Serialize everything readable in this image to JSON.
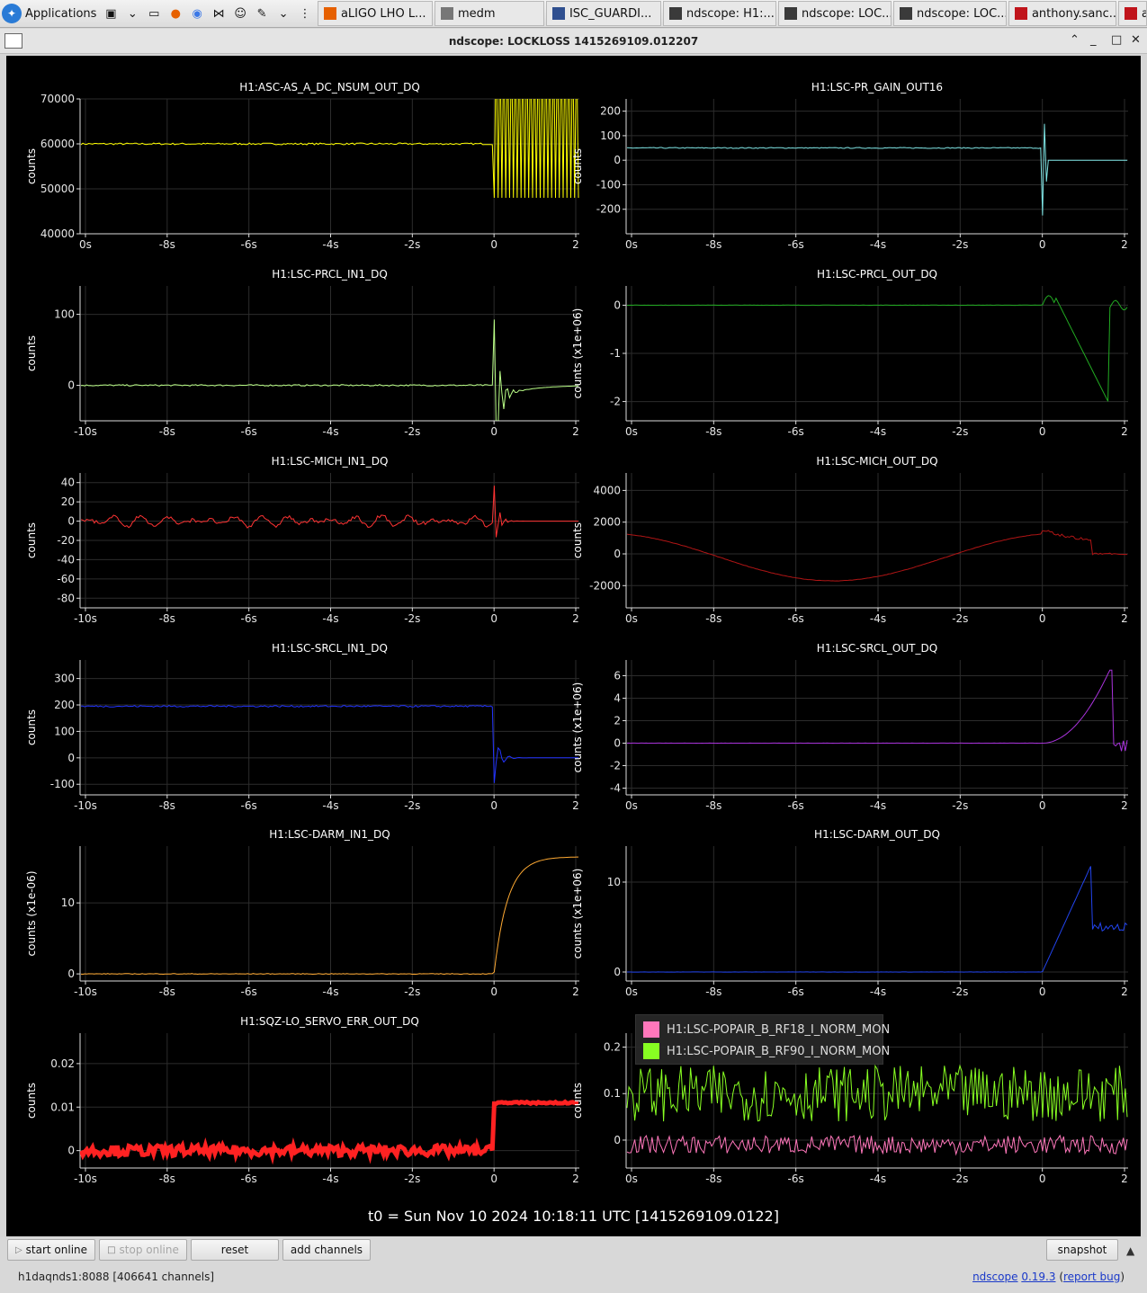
{
  "taskbar": {
    "applications_label": "Applications",
    "tasks": [
      {
        "label": "aLIGO LHO L...",
        "icon": "firefox-icon",
        "color": "#e66000"
      },
      {
        "label": "medm",
        "icon": "window-icon",
        "color": "#777777"
      },
      {
        "label": "ISC_GUARDI...",
        "icon": "monitor-icon",
        "color": "#2f4f8f"
      },
      {
        "label": "ndscope: H1:...",
        "icon": "ndscope-icon",
        "color": "#3a3a3a"
      },
      {
        "label": "ndscope: LOC...",
        "icon": "ndscope-icon",
        "color": "#3a3a3a"
      },
      {
        "label": "ndscope: LOC...",
        "icon": "ndscope-icon",
        "color": "#3a3a3a"
      },
      {
        "label": "anthony.sanc...",
        "icon": "terminal-red-icon",
        "color": "#c0141b"
      },
      {
        "label": "a",
        "icon": "terminal-red-icon",
        "color": "#c0141b"
      }
    ]
  },
  "window": {
    "title": "ndscope: LOCKLOSS 1415269109.012207"
  },
  "plots": {
    "t0_label": "t0 = Sun Nov 10 2024 10:18:11 UTC [1415269109.0122]",
    "legend": [
      {
        "name": "H1:LSC-POPAIR_B_RF18_I_NORM_MON",
        "color": "#ff77bb"
      },
      {
        "name": "H1:LSC-POPAIR_B_RF90_I_NORM_MON",
        "color": "#88ff22"
      }
    ]
  },
  "chart_data": [
    {
      "type": "line",
      "title": "H1:ASC-AS_A_DC_NSUM_OUT_DQ",
      "ylabel": "counts",
      "color": "#ffff00",
      "xticks": [
        "0s",
        "-8s",
        "-6s",
        "-4s",
        "-2s",
        "0",
        "2"
      ],
      "yticks": [
        {
          "v": 70000,
          "t": "70000"
        },
        {
          "v": 60000,
          "t": "60000"
        },
        {
          "v": 50000,
          "t": "50000"
        },
        {
          "v": 40000,
          "t": "40000"
        }
      ],
      "ylim": [
        40000,
        70000
      ],
      "pattern": "flat",
      "base": 60000,
      "noise": 200
    },
    {
      "type": "line",
      "title": "H1:LSC-PR_GAIN_OUT16",
      "ylabel": "counts",
      "color": "#7fe5e5",
      "xticks": [
        "0s",
        "-8s",
        "-6s",
        "-4s",
        "-2s",
        "0",
        "2"
      ],
      "yticks": [
        {
          "v": 200,
          "t": "200"
        },
        {
          "v": 100,
          "t": "100"
        },
        {
          "v": 0,
          "t": "0"
        },
        {
          "v": -100,
          "t": "-100"
        },
        {
          "v": -200,
          "t": "-200"
        }
      ],
      "ylim": [
        -300,
        250
      ],
      "pattern": "flat",
      "base": 50,
      "noise": 2
    },
    {
      "type": "line",
      "title": "H1:LSC-PRCL_IN1_DQ",
      "ylabel": "counts",
      "color": "#bbff88",
      "xticks": [
        "-10s",
        "-8s",
        "-6s",
        "-4s",
        "-2s",
        "0",
        "2"
      ],
      "yticks": [
        {
          "v": 100,
          "t": "100"
        },
        {
          "v": 0,
          "t": "0"
        }
      ],
      "ylim": [
        -50,
        140
      ],
      "pattern": "flat",
      "base": 0,
      "noise": 1
    },
    {
      "type": "line",
      "title": "H1:LSC-PRCL_OUT_DQ",
      "ylabel": "counts (x1e+06)",
      "color": "#22aa22",
      "xticks": [
        "0s",
        "-8s",
        "-6s",
        "-4s",
        "-2s",
        "0",
        "2"
      ],
      "yticks": [
        {
          "v": 0,
          "t": "0"
        },
        {
          "v": -1,
          "t": "-1"
        },
        {
          "v": -2,
          "t": "-2"
        }
      ],
      "ylim": [
        -2.4,
        0.4
      ],
      "pattern": "flat",
      "base": 0,
      "noise": 0.003
    },
    {
      "type": "line",
      "title": "H1:LSC-MICH_IN1_DQ",
      "ylabel": "counts",
      "color": "#ff3333",
      "xticks": [
        "-10s",
        "-8s",
        "-6s",
        "-4s",
        "-2s",
        "0",
        "2"
      ],
      "yticks": [
        {
          "v": 40,
          "t": "40"
        },
        {
          "v": 20,
          "t": "20"
        },
        {
          "v": 0,
          "t": "0"
        },
        {
          "v": -20,
          "t": "-20"
        },
        {
          "v": -40,
          "t": "-40"
        },
        {
          "v": -60,
          "t": "-60"
        },
        {
          "v": -80,
          "t": "-80"
        }
      ],
      "ylim": [
        -90,
        50
      ],
      "pattern": "osc",
      "base": 0,
      "noise": 2
    },
    {
      "type": "line",
      "title": "H1:LSC-MICH_OUT_DQ",
      "ylabel": "counts",
      "color": "#b01515",
      "xticks": [
        "0s",
        "-8s",
        "-6s",
        "-4s",
        "-2s",
        "0",
        "2"
      ],
      "yticks": [
        {
          "v": 4000,
          "t": "4000"
        },
        {
          "v": 2000,
          "t": "2000"
        },
        {
          "v": 0,
          "t": "0"
        },
        {
          "v": -2000,
          "t": "-2000"
        }
      ],
      "ylim": [
        -3400,
        5100
      ],
      "pattern": "wave",
      "base": 0,
      "noise": 20
    },
    {
      "type": "line",
      "title": "H1:LSC-SRCL_IN1_DQ",
      "ylabel": "counts",
      "color": "#2233ff",
      "xticks": [
        "-10s",
        "-8s",
        "-6s",
        "-4s",
        "-2s",
        "0",
        "2"
      ],
      "yticks": [
        {
          "v": 300,
          "t": "300"
        },
        {
          "v": 200,
          "t": "200"
        },
        {
          "v": 100,
          "t": "100"
        },
        {
          "v": 0,
          "t": "0"
        },
        {
          "v": -100,
          "t": "-100"
        }
      ],
      "ylim": [
        -140,
        370
      ],
      "pattern": "flat",
      "base": 195,
      "noise": 3
    },
    {
      "type": "line",
      "title": "H1:LSC-SRCL_OUT_DQ",
      "ylabel": "counts (x1e+06)",
      "color": "#aa33dd",
      "xticks": [
        "0s",
        "-8s",
        "-6s",
        "-4s",
        "-2s",
        "0",
        "2"
      ],
      "yticks": [
        {
          "v": 6,
          "t": "6"
        },
        {
          "v": 4,
          "t": "4"
        },
        {
          "v": 2,
          "t": "2"
        },
        {
          "v": 0,
          "t": "0"
        },
        {
          "v": -2,
          "t": "-2"
        },
        {
          "v": -4,
          "t": "-4"
        }
      ],
      "ylim": [
        -4.6,
        7.4
      ],
      "pattern": "flat",
      "base": 0,
      "noise": 0.01
    },
    {
      "type": "line",
      "title": "H1:LSC-DARM_IN1_DQ",
      "ylabel": "counts (x1e-06)",
      "color": "#ffaa33",
      "xticks": [
        "-10s",
        "-8s",
        "-6s",
        "-4s",
        "-2s",
        "0",
        "2"
      ],
      "yticks": [
        {
          "v": 10,
          "t": "10"
        },
        {
          "v": 0,
          "t": "0"
        }
      ],
      "ylim": [
        -1,
        18
      ],
      "pattern": "flat",
      "base": 0,
      "noise": 0.05
    },
    {
      "type": "line",
      "title": "H1:LSC-DARM_OUT_DQ",
      "ylabel": "counts (x1e+06)",
      "color": "#2244ee",
      "xticks": [
        "0s",
        "-8s",
        "-6s",
        "-4s",
        "-2s",
        "0",
        "2"
      ],
      "yticks": [
        {
          "v": 10,
          "t": "10"
        },
        {
          "v": 0,
          "t": "0"
        }
      ],
      "ylim": [
        -1,
        14
      ],
      "pattern": "flat",
      "base": 0,
      "noise": 0.01
    },
    {
      "type": "line",
      "title": "H1:SQZ-LO_SERVO_ERR_OUT_DQ",
      "ylabel": "counts",
      "color": "#ff2222",
      "xticks": [
        "-10s",
        "-8s",
        "-6s",
        "-4s",
        "-2s",
        "0",
        "2"
      ],
      "yticks": [
        {
          "v": 0.02,
          "t": "0.02"
        },
        {
          "v": 0.01,
          "t": "0.01"
        },
        {
          "v": 0,
          "t": "0"
        }
      ],
      "ylim": [
        -0.004,
        0.027
      ],
      "pattern": "thick",
      "base": 0,
      "noise": 0.0012
    },
    {
      "type": "line",
      "title": "",
      "ylabel": "counts",
      "color": "#88ff22",
      "xticks": [
        "0s",
        "-8s",
        "-6s",
        "-4s",
        "-2s",
        "0",
        "2"
      ],
      "yticks": [
        {
          "v": 0.2,
          "t": "0.2"
        },
        {
          "v": 0.1,
          "t": "0.1"
        },
        {
          "v": 0,
          "t": "0"
        }
      ],
      "ylim": [
        -0.06,
        0.23
      ],
      "pattern": "noise",
      "series": [
        {
          "name": "H1:LSC-POPAIR_B_RF18_I_NORM_MON",
          "color": "#ff77bb",
          "base": -0.01,
          "noise": 0.02
        },
        {
          "name": "H1:LSC-POPAIR_B_RF90_I_NORM_MON",
          "color": "#88ff22",
          "base": 0.1,
          "noise": 0.06
        }
      ]
    }
  ],
  "buttons": {
    "start_online": "start online",
    "stop_online": "stop online",
    "reset": "reset",
    "add_channels": "add channels",
    "snapshot": "snapshot"
  },
  "status": {
    "server": "h1daqnds1:8088  [406641 channels]",
    "app_name": "ndscope",
    "version": "0.19.3",
    "report_bug": "report bug"
  }
}
